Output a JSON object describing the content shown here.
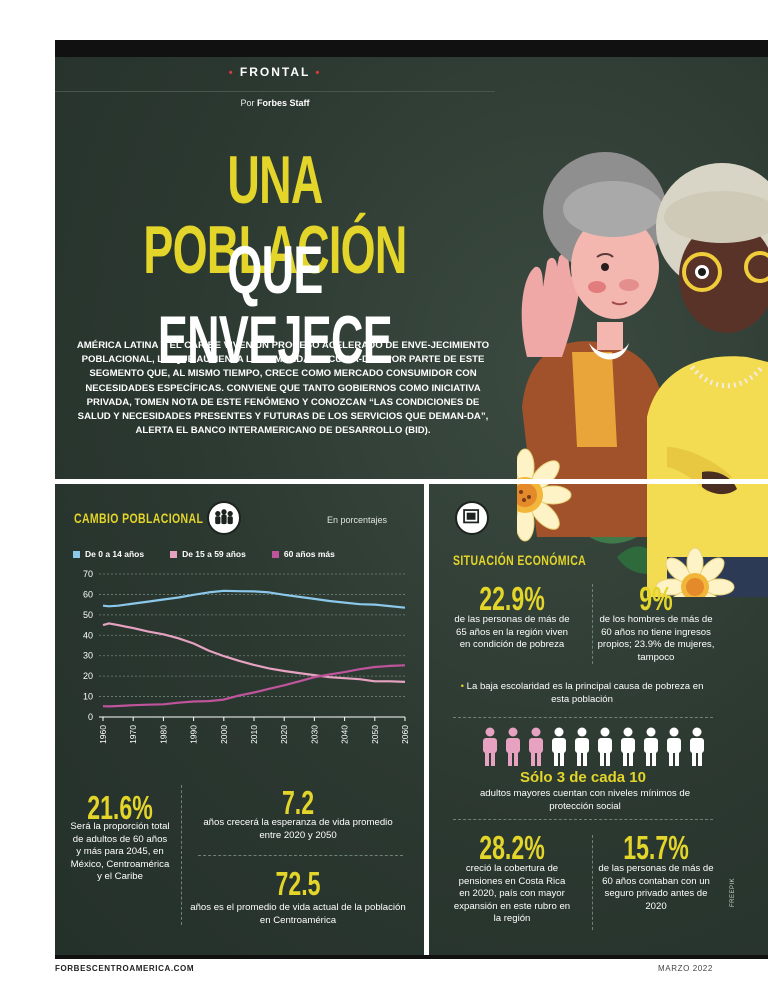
{
  "kicker": "FRONTAL",
  "byline": {
    "prefix": "Por",
    "author": "Forbes Staff"
  },
  "headline": {
    "line1": "UNA POBLACIÓN",
    "line2": "QUE ENVEJECE"
  },
  "intro": "AMÉRICA LATINA Y EL CARIBE VIVEN UN PROCESO ACELERADO DE ENVE-JECIMIENTO POBLACIONAL, LO QUE AUMENTA LA DEMANDA DE CUIDA-DOS POR PARTE DE ESTE SEGMENTO QUE, AL MISMO TIEMPO, CRECE COMO MERCADO CONSUMIDOR CON NECESIDADES ESPECÍFICAS. CONVIENE QUE TANTO GOBIERNOS COMO INICIATIVA PRIVADA, TOMEN NOTA DE ESTE FENÓMENO Y CONOZCAN “LAS CONDICIONES DE SALUD Y NECESIDADES PRESENTES Y FUTURAS DE LOS SERVICIOS QUE DEMAN-DA”, ALERTA EL BANCO INTERAMERICANO DE DESARROLLO (BID).",
  "left_panel": {
    "title": "CAMBIO POBLACIONAL",
    "unit_note": "En porcentajes",
    "legend": [
      "De 0 a 14 años",
      "De 15 a 59 años",
      "60 años más"
    ],
    "stats": [
      {
        "value": "21.6%",
        "text": "Será la proporción total de adultos de 60 años y más para 2045, en México, Centroamérica y el Caribe"
      },
      {
        "value": "7.2",
        "text": "años crecerá la esperanza de vida promedio entre 2020 y 2050"
      },
      {
        "value": "72.5",
        "text": "años es el promedio de vida actual de la población en Centroamérica"
      }
    ]
  },
  "right_panel": {
    "title": "SITUACIÓN ECONÓMICA",
    "stats_top": [
      {
        "value": "22.9%",
        "text": "de las personas de más de 65 años en la región viven en condición de pobreza"
      },
      {
        "value": "9%",
        "text": "de los hombres de más de 60 años no tiene ingresos propios; 23.9% de mujeres, tampoco"
      }
    ],
    "bullet": "La baja escolaridad es la principal causa de pobreza en esta población",
    "highlight": "Sólo 3 de cada 10",
    "highlight_text": "adultos mayores cuentan con niveles mínimos de protección social",
    "stats_bottom": [
      {
        "value": "28.2%",
        "text": "creció la cobertura de pensiones en Costa Rica en 2020, país con mayor expansión en este rubro en la región"
      },
      {
        "value": "15.7%",
        "text": "de las personas de más de 60 años contaban con un seguro privado antes de 2020"
      }
    ],
    "people_total": 10,
    "people_highlighted": 3
  },
  "credit": "FREEPIK",
  "footer": {
    "site": "FORBESCENTROAMERICA.COM",
    "date": "MARZO 2022"
  },
  "colors": {
    "accent_yellow": "#e3d52a",
    "series_blue": "#8cc8ea",
    "series_pink": "#e6a2c0",
    "series_purple": "#c0549c",
    "background": "#2b3830"
  },
  "chart_data": {
    "type": "line",
    "title": "CAMBIO POBLACIONAL",
    "ylabel": "En porcentajes",
    "xlabel": "",
    "ylim": [
      0,
      70
    ],
    "yticks": [
      0,
      10,
      20,
      30,
      40,
      50,
      60,
      70
    ],
    "xticks": [
      1960,
      1970,
      1980,
      1990,
      2000,
      2010,
      2020,
      2030,
      2040,
      2050,
      2060
    ],
    "x": [
      1960,
      1962,
      1965,
      1970,
      1975,
      1980,
      1985,
      1990,
      1995,
      2000,
      2005,
      2010,
      2015,
      2020,
      2025,
      2030,
      2035,
      2040,
      2045,
      2050,
      2055,
      2060
    ],
    "series": [
      {
        "name": "De 0 a 14 años",
        "values": [
          54.5,
          54.2,
          54.5,
          55.5,
          56.5,
          57.5,
          58.5,
          59.8,
          61,
          61.8,
          61.6,
          61.5,
          61,
          59.8,
          58.8,
          57.8,
          56.8,
          56,
          55.2,
          55,
          54.3,
          53.5
        ]
      },
      {
        "name": "De 15 a 59 años",
        "values": [
          45,
          45.8,
          45,
          43.5,
          41.8,
          40.5,
          38.5,
          36,
          32.5,
          29.8,
          27.5,
          25.5,
          23.8,
          22.5,
          21.5,
          20.5,
          19.5,
          19,
          18.5,
          17.5,
          17.5,
          17.2
        ]
      },
      {
        "name": "60 años más",
        "values": [
          5.3,
          5.2,
          5.4,
          5.8,
          6,
          6.2,
          7,
          7.6,
          7.8,
          8.5,
          10.5,
          12,
          13.8,
          15.5,
          17.5,
          19.5,
          20.8,
          22,
          23.4,
          24.5,
          25,
          25.3
        ]
      }
    ]
  }
}
